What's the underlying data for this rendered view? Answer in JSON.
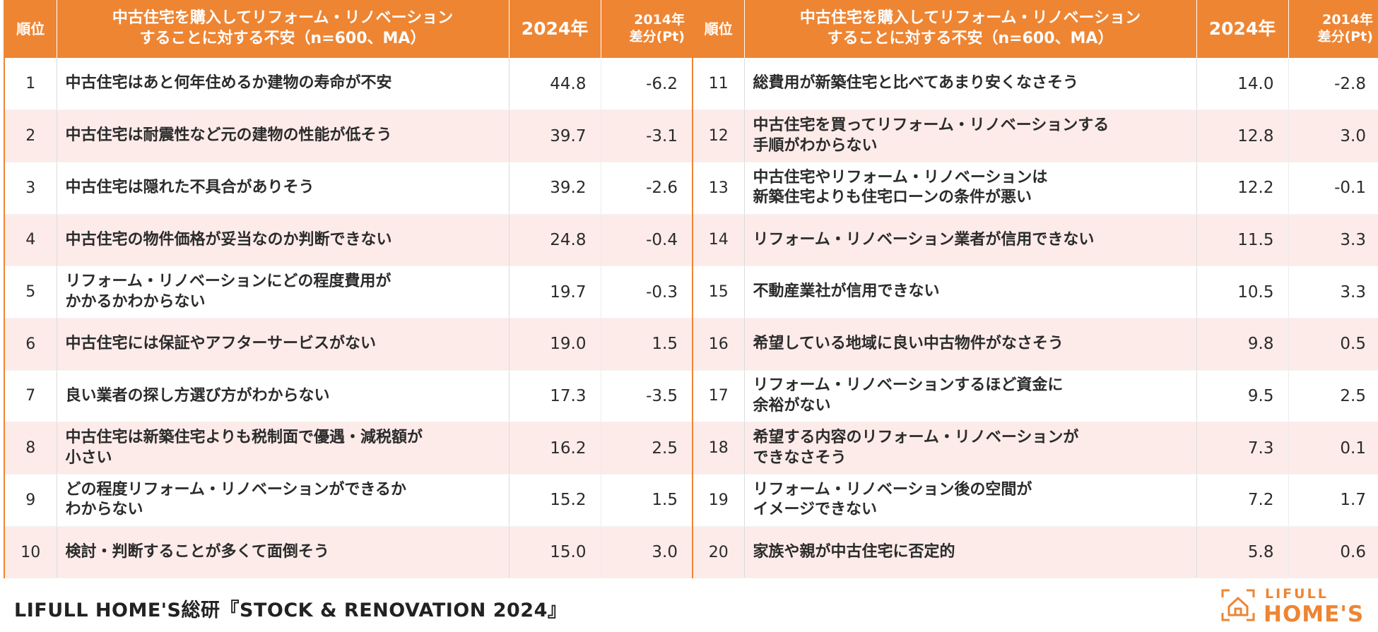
{
  "header": {
    "rank": "順位",
    "item_line1": "中古住宅を購入してリフォーム・リノベーション",
    "item_line2": "することに対する不安（n=600、MA）",
    "year": "2024年",
    "diff_line1": "2014年",
    "diff_line2": "差分(Pt)"
  },
  "left_rows": [
    {
      "rank": "1",
      "line1": "中古住宅はあと何年住めるか建物の寿命が不安",
      "line2": "",
      "value": "44.8",
      "diff": "-6.2"
    },
    {
      "rank": "2",
      "line1": "中古住宅は耐震性など元の建物の性能が低そう",
      "line2": "",
      "value": "39.7",
      "diff": "-3.1"
    },
    {
      "rank": "3",
      "line1": "中古住宅は隠れた不具合がありそう",
      "line2": "",
      "value": "39.2",
      "diff": "-2.6"
    },
    {
      "rank": "4",
      "line1": "中古住宅の物件価格が妥当なのか判断できない",
      "line2": "",
      "value": "24.8",
      "diff": "-0.4"
    },
    {
      "rank": "5",
      "line1": "リフォーム・リノベーションにどの程度費用が",
      "line2": "かかるかわからない",
      "value": "19.7",
      "diff": "-0.3"
    },
    {
      "rank": "6",
      "line1": "中古住宅には保証やアフターサービスがない",
      "line2": "",
      "value": "19.0",
      "diff": "1.5"
    },
    {
      "rank": "7",
      "line1": "良い業者の探し方選び方がわからない",
      "line2": "",
      "value": "17.3",
      "diff": "-3.5"
    },
    {
      "rank": "8",
      "line1": "中古住宅は新築住宅よりも税制面で優遇・減税額が",
      "line2": "小さい",
      "value": "16.2",
      "diff": "2.5"
    },
    {
      "rank": "9",
      "line1": "どの程度リフォーム・リノベーションができるか",
      "line2": "わからない",
      "value": "15.2",
      "diff": "1.5"
    },
    {
      "rank": "10",
      "line1": "検討・判断することが多くて面倒そう",
      "line2": "",
      "value": "15.0",
      "diff": "3.0"
    }
  ],
  "right_rows": [
    {
      "rank": "11",
      "line1": "総費用が新築住宅と比べてあまり安くなさそう",
      "line2": "",
      "value": "14.0",
      "diff": "-2.8"
    },
    {
      "rank": "12",
      "line1": "中古住宅を買ってリフォーム・リノベーションする",
      "line2": "手順がわからない",
      "value": "12.8",
      "diff": "3.0"
    },
    {
      "rank": "13",
      "line1": "中古住宅やリフォーム・リノベーションは",
      "line2": "新築住宅よりも住宅ローンの条件が悪い",
      "value": "12.2",
      "diff": "-0.1"
    },
    {
      "rank": "14",
      "line1": "リフォーム・リノベーション業者が信用できない",
      "line2": "",
      "value": "11.5",
      "diff": "3.3"
    },
    {
      "rank": "15",
      "line1": "不動産業社が信用できない",
      "line2": "",
      "value": "10.5",
      "diff": "3.3"
    },
    {
      "rank": "16",
      "line1": "希望している地域に良い中古物件がなさそう",
      "line2": "",
      "value": "9.8",
      "diff": "0.5"
    },
    {
      "rank": "17",
      "line1": "リフォーム・リノベーションするほど資金に",
      "line2": "余裕がない",
      "value": "9.5",
      "diff": "2.5"
    },
    {
      "rank": "18",
      "line1": "希望する内容のリフォーム・リノベーションが",
      "line2": "できなさそう",
      "value": "7.3",
      "diff": "0.1"
    },
    {
      "rank": "19",
      "line1": "リフォーム・リノベーション後の空間が",
      "line2": "イメージできない",
      "value": "7.2",
      "diff": "1.7"
    },
    {
      "rank": "20",
      "line1": "家族や親が中古住宅に否定的",
      "line2": "",
      "value": "5.8",
      "diff": "0.6"
    }
  ],
  "footer": {
    "source": "LIFULL HOME'S総研『STOCK & RENOVATION 2024』",
    "logo_small": "LIFULL",
    "logo_big": "HOME'S"
  },
  "colors": {
    "header_bg": "#ee8533",
    "stripe_bg": "#fcebe9"
  }
}
